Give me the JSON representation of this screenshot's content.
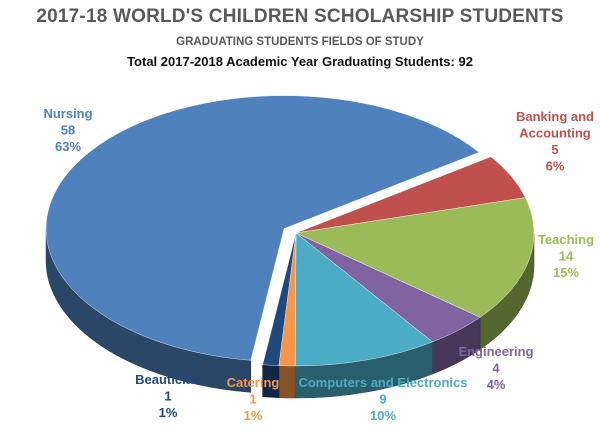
{
  "header": {
    "title": "2017-18 WORLD'S CHILDREN SCHOLARSHIP STUDENTS",
    "subtitle": "GRADUATING STUDENTS FIELDS OF STUDY",
    "total_line": "Total 2017-2018 Academic Year Graduating Students: 92"
  },
  "chart_data": {
    "type": "pie",
    "style": "3d-exploded",
    "title": "2017-18 WORLD'S CHILDREN SCHOLARSHIP STUDENTS",
    "subtitle": "GRADUATING STUDENTS FIELDS OF STUDY",
    "total_label": "Total 2017-2018 Academic Year Graduating Students: 92",
    "total": 92,
    "slices": [
      {
        "name": "Banking and Accounting",
        "value": 5,
        "percent_label": "6%",
        "color": "#c0504d"
      },
      {
        "name": "Teaching",
        "value": 14,
        "percent_label": "15%",
        "color": "#9bbb59"
      },
      {
        "name": "Engineering",
        "value": 4,
        "percent_label": "4%",
        "color": "#8064a2"
      },
      {
        "name": "Computers and Electronics",
        "value": 9,
        "percent_label": "10%",
        "color": "#4bacc6"
      },
      {
        "name": "Catering",
        "value": 1,
        "percent_label": "1%",
        "color": "#f79646"
      },
      {
        "name": "Beautician",
        "value": 1,
        "percent_label": "1%",
        "color": "#1f497d"
      },
      {
        "name": "Nursing",
        "value": 58,
        "percent_label": "63%",
        "color": "#4f81bd"
      }
    ]
  }
}
